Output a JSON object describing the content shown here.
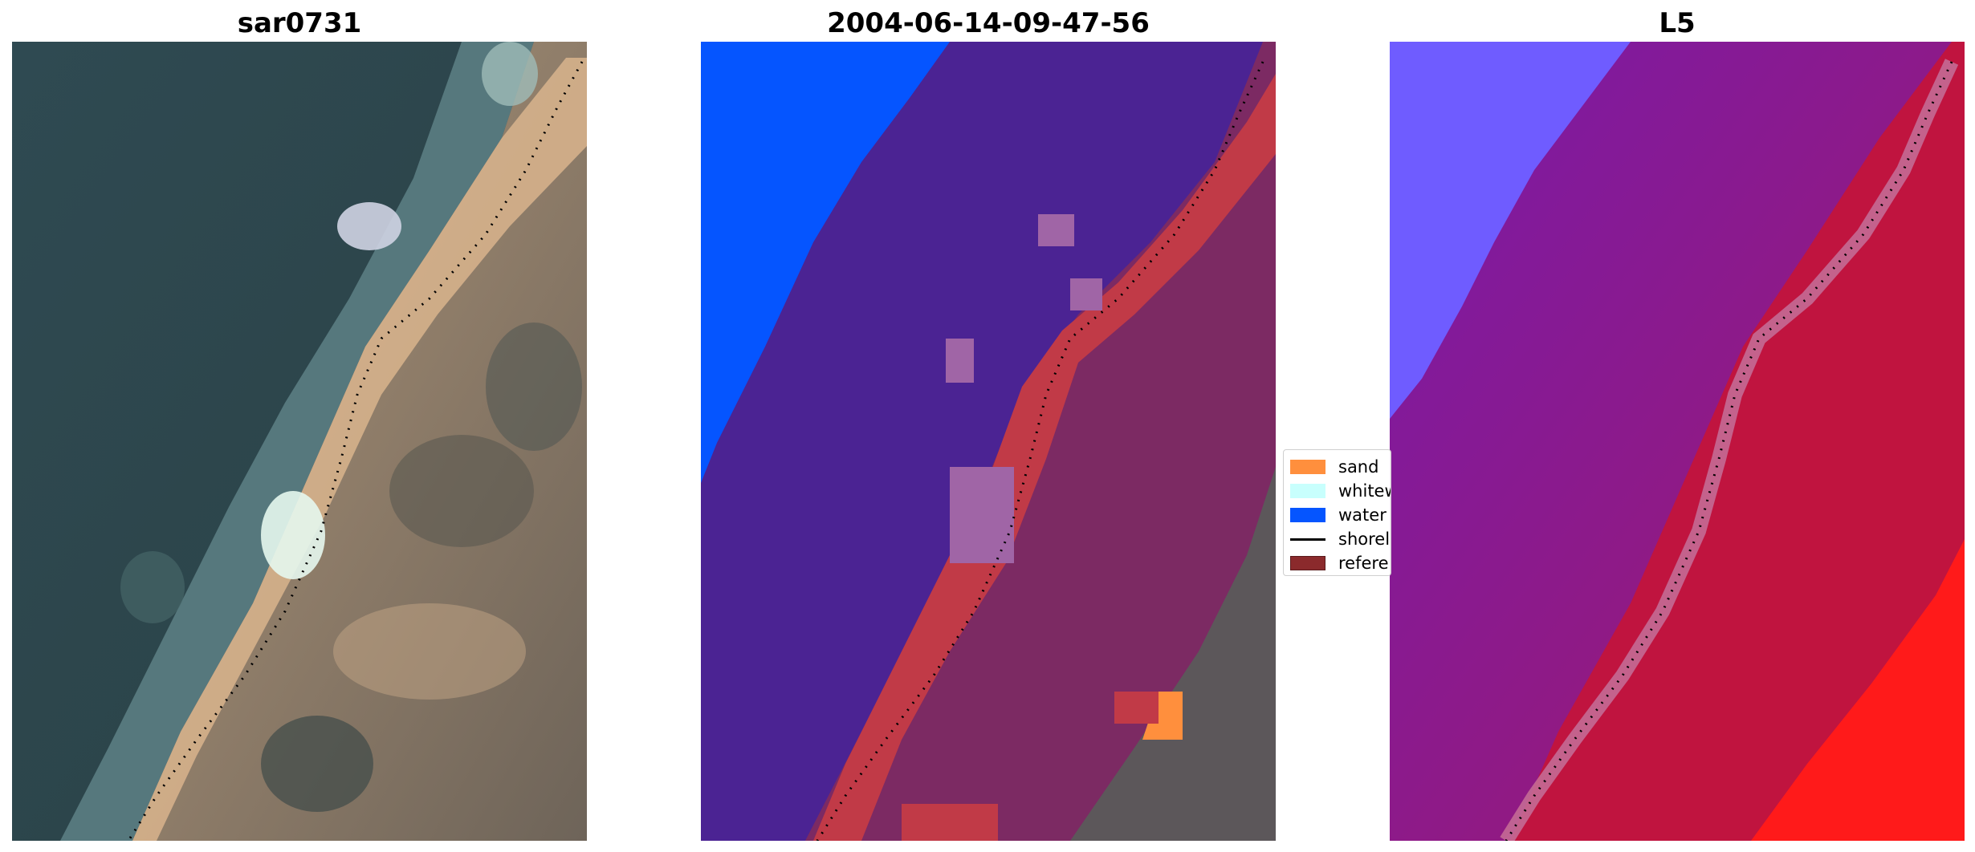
{
  "figure": {
    "panels": [
      {
        "title": "sar0731",
        "content": "rgb-image"
      },
      {
        "title": "2004-06-14-09-47-56",
        "content": "classified-image"
      },
      {
        "title": "L5",
        "content": "water-index-image"
      }
    ],
    "legend": {
      "items": [
        {
          "label": "sand",
          "color": "#ff8f3d",
          "kind": "patch"
        },
        {
          "label": "whitew",
          "color": "#c8fffd",
          "kind": "patch"
        },
        {
          "label": "water",
          "color": "#0555ff",
          "kind": "patch"
        },
        {
          "label": "shorel",
          "color": "#000000",
          "kind": "line"
        },
        {
          "label": "refere",
          "color": "#8b2a2c",
          "kind": "patch"
        }
      ]
    },
    "colors": {
      "water_class": "#0555ff",
      "sea_overlay": "#4b1f8f",
      "reference_band": "#c13a47",
      "index_water": "#6f5cff",
      "index_land": "#ff1a1a"
    }
  }
}
